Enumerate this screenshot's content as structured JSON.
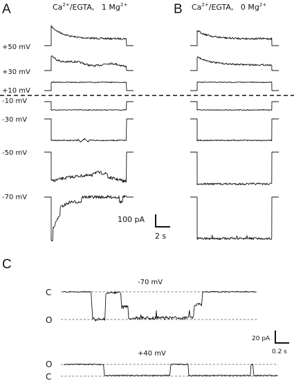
{
  "panels": {
    "A": {
      "letter": "A",
      "condition_prefix": "Ca",
      "condition_sup1": "2+",
      "condition_mid": "/EGTA,   1 Mg",
      "condition_sup2": "2+"
    },
    "B": {
      "letter": "B",
      "condition_prefix": "Ca",
      "condition_sup1": "2+",
      "condition_mid": "/EGTA,   0 Mg",
      "condition_sup2": "2+"
    },
    "C": {
      "letter": "C",
      "top_title": "-70 mV",
      "bottom_title": "+40 mV",
      "top_levels": {
        "closed": "C",
        "open": "O"
      },
      "bottom_levels": {
        "open": "O",
        "closed": "C"
      }
    }
  },
  "voltages": [
    "+50 mV",
    "+30 mV",
    "+10 mV",
    "-10 mV",
    "-30 mV",
    "-50 mV",
    "-70 mV"
  ],
  "scale_bar_AB": {
    "current": "100 pA",
    "time": "2 s"
  },
  "scale_bar_C": {
    "current": "20 pA",
    "time": "0.2 s"
  }
}
